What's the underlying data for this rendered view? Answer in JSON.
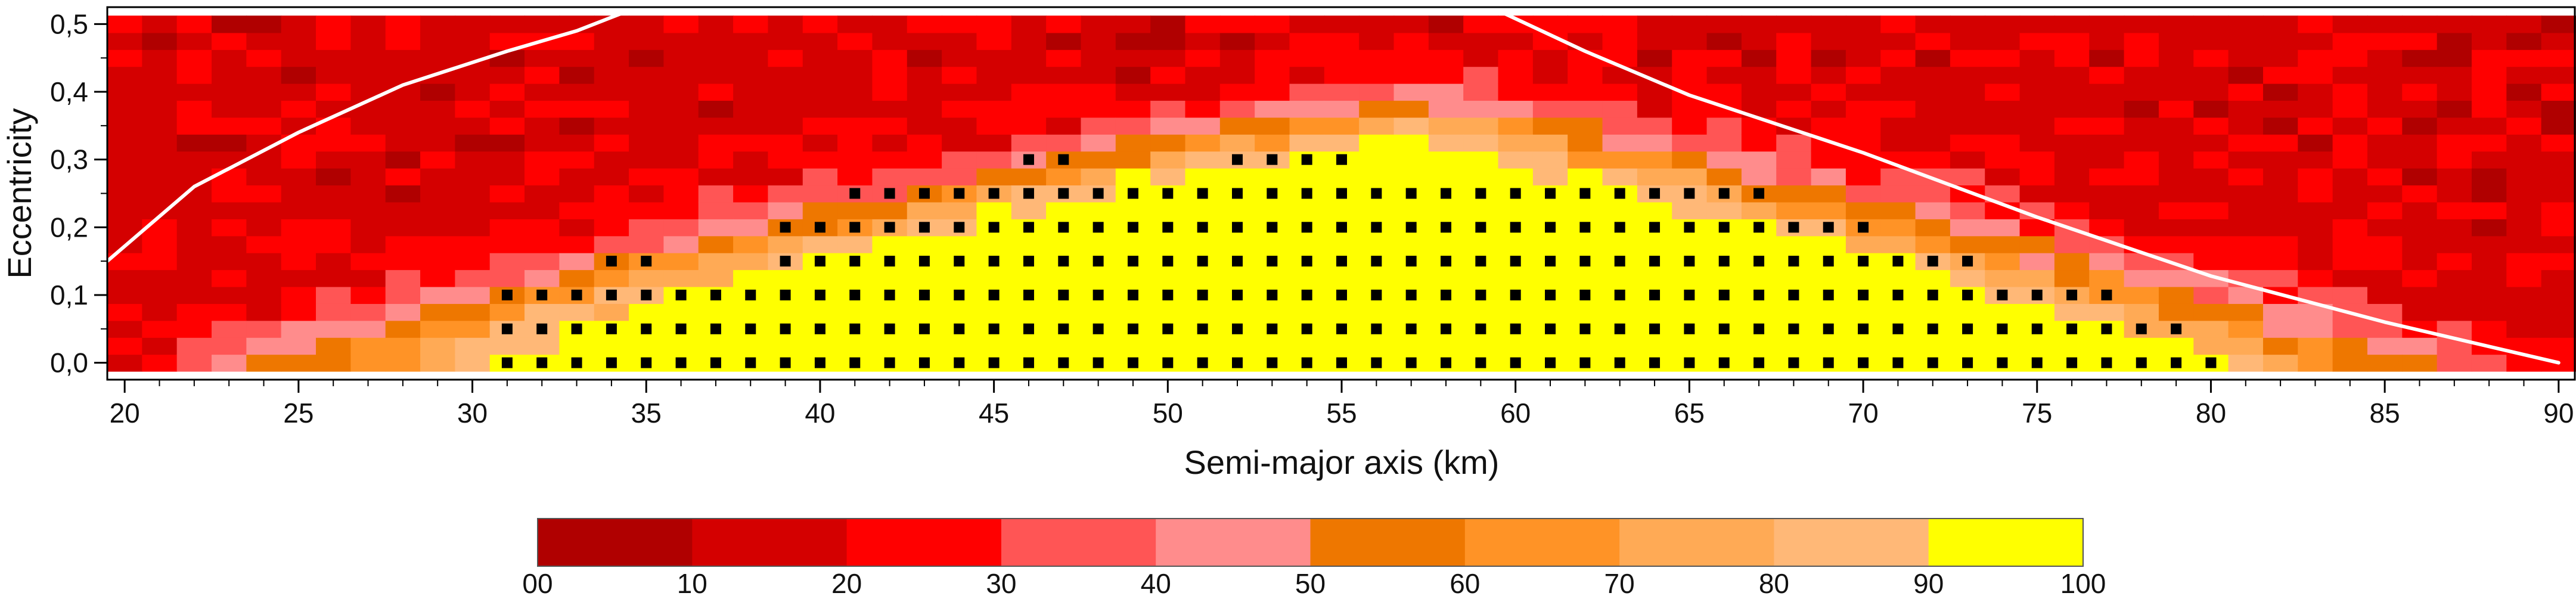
{
  "chart_data": {
    "type": "heatmap",
    "xlabel": "Semi-major axis (km)",
    "ylabel": "Eccentricity",
    "xlim": [
      19.5,
      90.5
    ],
    "ylim": [
      -0.025,
      0.525
    ],
    "x_ticks": [
      "20",
      "25",
      "30",
      "35",
      "40",
      "45",
      "50",
      "55",
      "60",
      "65",
      "70",
      "75",
      "80",
      "85",
      "90"
    ],
    "y_ticks": [
      "0,0",
      "0,1",
      "0,2",
      "0,3",
      "0,4",
      "0,5"
    ],
    "x_tick_values": [
      20,
      25,
      30,
      35,
      40,
      45,
      50,
      55,
      60,
      65,
      70,
      75,
      80,
      85,
      90
    ],
    "y_tick_values": [
      0.0,
      0.1,
      0.2,
      0.3,
      0.4,
      0.5
    ],
    "grid": false,
    "heat_x_min": 20,
    "heat_x_max": 90,
    "heat_x_step": 1,
    "heat_y_values": [
      0.0,
      0.025,
      0.05,
      0.075,
      0.1,
      0.125,
      0.15,
      0.175,
      0.2,
      0.225,
      0.25,
      0.275,
      0.3,
      0.325,
      0.35,
      0.375,
      0.4,
      0.425,
      0.45,
      0.475,
      0.5
    ],
    "color_bins": [
      {
        "label": "00-10",
        "color": "#b00000"
      },
      {
        "label": "10-20",
        "color": "#d40000"
      },
      {
        "label": "20-30",
        "color": "#ff0000"
      },
      {
        "label": "30-40",
        "color": "#ff5555"
      },
      {
        "label": "40-50",
        "color": "#ff8c8c"
      },
      {
        "label": "50-60",
        "color": "#ee7700"
      },
      {
        "label": "60-70",
        "color": "#ff9326"
      },
      {
        "label": "70-80",
        "color": "#ffaa55"
      },
      {
        "label": "80-90",
        "color": "#ffb877"
      },
      {
        "label": "90-100",
        "color": "#ffff00"
      }
    ],
    "colorbar_tick_labels": [
      "00",
      "10",
      "20",
      "30",
      "40",
      "50",
      "60",
      "70",
      "80",
      "90",
      "100"
    ],
    "stable_points": [
      {
        "e": 0.0,
        "x_from": 31,
        "x_to": 80
      },
      {
        "e": 0.05,
        "x_from": 31,
        "x_to": 79
      },
      {
        "e": 0.1,
        "x_from": 31,
        "x_to": 77
      },
      {
        "e": 0.15,
        "x_from": 34,
        "x_to": 35
      },
      {
        "e": 0.15,
        "x_from": 39,
        "x_to": 73
      },
      {
        "e": 0.2,
        "x_from": 39,
        "x_to": 70
      },
      {
        "e": 0.25,
        "x_from": 41,
        "x_to": 67
      },
      {
        "e": 0.3,
        "x_from": 46,
        "x_to": 47
      },
      {
        "e": 0.3,
        "x_from": 52,
        "x_to": 55
      }
    ],
    "boundary_curves": [
      {
        "x": [
          19.5,
          22,
          25,
          28,
          31,
          33,
          34.5
        ],
        "y": [
          0.15,
          0.26,
          0.34,
          0.41,
          0.46,
          0.49,
          0.52
        ]
      },
      {
        "x": [
          59.5,
          62,
          65,
          70,
          75,
          80,
          85,
          90
        ],
        "y": [
          0.52,
          0.46,
          0.395,
          0.31,
          0.215,
          0.128,
          0.06,
          0.0
        ]
      }
    ]
  }
}
